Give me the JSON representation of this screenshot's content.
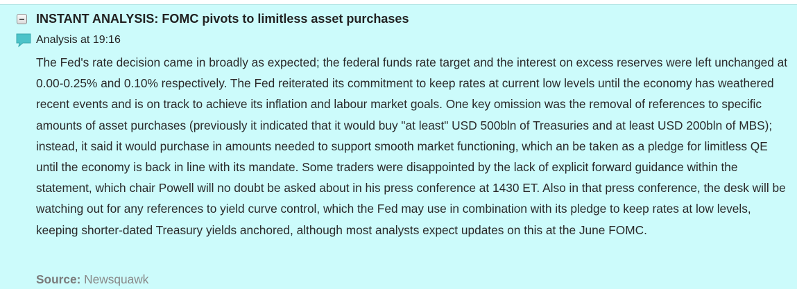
{
  "headline": {
    "title": "INSTANT ANALYSIS: FOMC pivots to limitless asset purchases",
    "collapse_icon": "collapse-minus-icon"
  },
  "analysis": {
    "icon": "comment-bubble-icon",
    "label": "Analysis at 19:16"
  },
  "body": "The Fed's rate decision came in broadly as expected; the federal funds rate target and the interest on excess reserves were left unchanged at 0.00-0.25% and 0.10% respectively. The Fed reiterated its commitment to keep rates at current low levels until the economy has weathered recent events and is on track to achieve its inflation and labour market goals. One key omission was the removal of references to specific amounts of asset purchases (previously it indicated that it would buy \"at least\" USD 500bln of Treasuries and at least USD 200bln of MBS); instead, it said it would purchase in amounts needed to support smooth market functioning, which an be taken as a pledge for limitless QE until the economy is back in line with its mandate. Some traders were disappointed by the lack of explicit forward guidance within the statement, which chair Powell will no doubt be asked about in his press conference at 1430 ET. Also in that press conference, the desk will be watching out for any references to yield curve control, which the Fed may use in combination with its pledge to keep rates at low levels, keeping shorter-dated Treasury yields anchored, although most analysts expect updates on this at the June FOMC.",
  "source": {
    "label": "Source:",
    "value": "Newsquawk"
  },
  "colors": {
    "panel_background": "#ccfbfb",
    "comment_icon": "#4cc3c9"
  }
}
